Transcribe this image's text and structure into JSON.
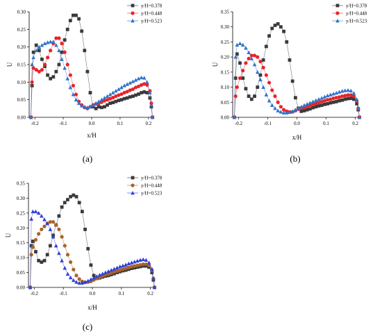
{
  "chart_data": [
    {
      "type": "line",
      "panel_label": "(a)",
      "xlabel": "x/H",
      "ylabel": "U",
      "xlim": [
        -0.22,
        0.22
      ],
      "ylim": [
        0,
        0.3
      ],
      "xticks": [
        "-0.2",
        "-0.1",
        "0.0",
        "0.1",
        "0.2"
      ],
      "yticks": [
        "0.00",
        "0.05",
        "0.10",
        "0.15",
        "0.20",
        "0.25",
        "0.30"
      ],
      "legend_position": "top-right",
      "series": [
        {
          "name": "y/H=0.378",
          "color": "#3a3a3a",
          "marker": "square",
          "x": [
            -0.214,
            -0.21,
            -0.205,
            -0.195,
            -0.185,
            -0.175,
            -0.165,
            -0.155,
            -0.145,
            -0.135,
            -0.125,
            -0.115,
            -0.105,
            -0.095,
            -0.085,
            -0.075,
            -0.065,
            -0.055,
            -0.045,
            -0.035,
            -0.025,
            -0.015,
            -0.005,
            0.005,
            0.015,
            0.025,
            0.035,
            0.045,
            0.055,
            0.065,
            0.075,
            0.085,
            0.095,
            0.105,
            0.115,
            0.125,
            0.135,
            0.145,
            0.155,
            0.165,
            0.175,
            0.185,
            0.195,
            0.205,
            0.21,
            0.214
          ],
          "y": [
            0.0,
            0.09,
            0.185,
            0.205,
            0.19,
            0.165,
            0.145,
            0.12,
            0.11,
            0.115,
            0.13,
            0.15,
            0.185,
            0.22,
            0.25,
            0.275,
            0.29,
            0.29,
            0.28,
            0.245,
            0.19,
            0.13,
            0.07,
            0.03,
            0.025,
            0.03,
            0.028,
            0.03,
            0.035,
            0.04,
            0.042,
            0.045,
            0.048,
            0.05,
            0.053,
            0.055,
            0.058,
            0.06,
            0.063,
            0.066,
            0.07,
            0.072,
            0.07,
            0.055,
            0.03,
            0.0
          ]
        },
        {
          "name": "y/H=0.448",
          "color": "#e8242a",
          "marker": "circle",
          "x": [
            -0.214,
            -0.21,
            -0.205,
            -0.195,
            -0.185,
            -0.175,
            -0.165,
            -0.155,
            -0.145,
            -0.135,
            -0.125,
            -0.115,
            -0.105,
            -0.095,
            -0.085,
            -0.075,
            -0.065,
            -0.055,
            -0.045,
            -0.035,
            -0.025,
            -0.015,
            -0.005,
            0.005,
            0.015,
            0.025,
            0.035,
            0.045,
            0.055,
            0.065,
            0.075,
            0.085,
            0.095,
            0.105,
            0.115,
            0.125,
            0.135,
            0.145,
            0.155,
            0.165,
            0.175,
            0.185,
            0.195,
            0.205,
            0.21,
            0.214
          ],
          "y": [
            0.0,
            0.1,
            0.14,
            0.135,
            0.13,
            0.135,
            0.15,
            0.17,
            0.19,
            0.21,
            0.225,
            0.225,
            0.21,
            0.185,
            0.15,
            0.12,
            0.09,
            0.065,
            0.045,
            0.035,
            0.028,
            0.025,
            0.03,
            0.035,
            0.038,
            0.04,
            0.043,
            0.047,
            0.05,
            0.053,
            0.056,
            0.06,
            0.063,
            0.066,
            0.07,
            0.073,
            0.077,
            0.08,
            0.085,
            0.088,
            0.092,
            0.095,
            0.092,
            0.075,
            0.04,
            0.0
          ]
        },
        {
          "name": "y/H=0.523",
          "color": "#2f73c8",
          "marker": "triangle",
          "x": [
            -0.214,
            -0.21,
            -0.205,
            -0.195,
            -0.185,
            -0.175,
            -0.165,
            -0.155,
            -0.145,
            -0.135,
            -0.125,
            -0.115,
            -0.105,
            -0.095,
            -0.085,
            -0.075,
            -0.065,
            -0.055,
            -0.045,
            -0.035,
            -0.025,
            -0.015,
            -0.005,
            0.005,
            0.015,
            0.025,
            0.035,
            0.045,
            0.055,
            0.065,
            0.075,
            0.085,
            0.095,
            0.105,
            0.115,
            0.125,
            0.135,
            0.145,
            0.155,
            0.165,
            0.175,
            0.185,
            0.195,
            0.205,
            0.21,
            0.214
          ],
          "y": [
            0.0,
            0.15,
            0.17,
            0.19,
            0.2,
            0.205,
            0.21,
            0.213,
            0.215,
            0.215,
            0.205,
            0.19,
            0.165,
            0.14,
            0.11,
            0.085,
            0.065,
            0.05,
            0.04,
            0.033,
            0.03,
            0.028,
            0.03,
            0.035,
            0.04,
            0.045,
            0.05,
            0.055,
            0.06,
            0.065,
            0.07,
            0.075,
            0.08,
            0.085,
            0.09,
            0.094,
            0.098,
            0.102,
            0.106,
            0.11,
            0.113,
            0.112,
            0.1,
            0.07,
            0.035,
            0.0
          ]
        }
      ]
    },
    {
      "type": "line",
      "panel_label": "(b)",
      "xlabel": "x/H",
      "ylabel": "U",
      "xlim": [
        -0.22,
        0.22
      ],
      "ylim": [
        0,
        0.35
      ],
      "xticks": [
        "-0.2",
        "-0.1",
        "0.0",
        "0.1",
        "0.2"
      ],
      "yticks": [
        "0.00",
        "0.05",
        "0.10",
        "0.15",
        "0.20",
        "0.25",
        "0.30",
        "0.35"
      ],
      "legend_position": "top-right",
      "series": [
        {
          "name": "y/H=0.378",
          "color": "#3a3a3a",
          "marker": "square",
          "x": [
            -0.214,
            -0.21,
            -0.205,
            -0.195,
            -0.185,
            -0.175,
            -0.165,
            -0.155,
            -0.145,
            -0.135,
            -0.125,
            -0.115,
            -0.105,
            -0.095,
            -0.085,
            -0.075,
            -0.065,
            -0.055,
            -0.045,
            -0.035,
            -0.025,
            -0.015,
            -0.005,
            0.005,
            0.015,
            0.025,
            0.035,
            0.045,
            0.055,
            0.065,
            0.075,
            0.085,
            0.095,
            0.105,
            0.115,
            0.125,
            0.135,
            0.145,
            0.155,
            0.165,
            0.175,
            0.185,
            0.195,
            0.205,
            0.21,
            0.214
          ],
          "y": [
            0.0,
            0.13,
            0.21,
            0.18,
            0.13,
            0.095,
            0.07,
            0.06,
            0.07,
            0.1,
            0.14,
            0.19,
            0.235,
            0.27,
            0.295,
            0.305,
            0.31,
            0.3,
            0.285,
            0.25,
            0.19,
            0.12,
            0.065,
            0.03,
            0.02,
            0.022,
            0.025,
            0.028,
            0.032,
            0.035,
            0.038,
            0.04,
            0.043,
            0.045,
            0.048,
            0.05,
            0.052,
            0.055,
            0.057,
            0.06,
            0.062,
            0.063,
            0.06,
            0.045,
            0.025,
            0.0
          ]
        },
        {
          "name": "y/H=0.448",
          "color": "#e8242a",
          "marker": "circle",
          "x": [
            -0.214,
            -0.21,
            -0.205,
            -0.195,
            -0.185,
            -0.175,
            -0.165,
            -0.155,
            -0.145,
            -0.135,
            -0.125,
            -0.115,
            -0.105,
            -0.095,
            -0.085,
            -0.075,
            -0.065,
            -0.055,
            -0.045,
            -0.035,
            -0.025,
            -0.015,
            -0.005,
            0.005,
            0.015,
            0.025,
            0.035,
            0.045,
            0.055,
            0.065,
            0.075,
            0.085,
            0.095,
            0.105,
            0.115,
            0.125,
            0.135,
            0.145,
            0.155,
            0.165,
            0.175,
            0.185,
            0.195,
            0.205,
            0.21,
            0.214
          ],
          "y": [
            0.0,
            0.07,
            0.1,
            0.13,
            0.155,
            0.18,
            0.195,
            0.205,
            0.205,
            0.2,
            0.185,
            0.165,
            0.14,
            0.115,
            0.09,
            0.07,
            0.05,
            0.035,
            0.025,
            0.02,
            0.018,
            0.018,
            0.022,
            0.027,
            0.03,
            0.033,
            0.036,
            0.04,
            0.043,
            0.046,
            0.049,
            0.052,
            0.055,
            0.058,
            0.06,
            0.063,
            0.065,
            0.067,
            0.07,
            0.072,
            0.074,
            0.074,
            0.07,
            0.055,
            0.03,
            0.0
          ]
        },
        {
          "name": "y/H=0.523",
          "color": "#2f73c8",
          "marker": "triangle",
          "x": [
            -0.214,
            -0.21,
            -0.205,
            -0.195,
            -0.185,
            -0.175,
            -0.165,
            -0.155,
            -0.145,
            -0.135,
            -0.125,
            -0.115,
            -0.105,
            -0.095,
            -0.085,
            -0.075,
            -0.065,
            -0.055,
            -0.045,
            -0.035,
            -0.025,
            -0.015,
            -0.005,
            0.005,
            0.015,
            0.025,
            0.035,
            0.045,
            0.055,
            0.065,
            0.075,
            0.085,
            0.095,
            0.105,
            0.115,
            0.125,
            0.135,
            0.145,
            0.155,
            0.165,
            0.175,
            0.185,
            0.195,
            0.205,
            0.21,
            0.214
          ],
          "y": [
            0.0,
            0.2,
            0.24,
            0.245,
            0.24,
            0.23,
            0.215,
            0.195,
            0.175,
            0.15,
            0.125,
            0.1,
            0.075,
            0.055,
            0.04,
            0.03,
            0.022,
            0.018,
            0.015,
            0.015,
            0.017,
            0.02,
            0.025,
            0.03,
            0.035,
            0.04,
            0.044,
            0.048,
            0.052,
            0.056,
            0.06,
            0.064,
            0.068,
            0.072,
            0.075,
            0.078,
            0.081,
            0.084,
            0.087,
            0.089,
            0.09,
            0.088,
            0.08,
            0.06,
            0.03,
            0.0
          ]
        }
      ]
    },
    {
      "type": "line",
      "panel_label": "(c)",
      "xlabel": "x/H",
      "ylabel": "U",
      "xlim": [
        -0.22,
        0.22
      ],
      "ylim": [
        0,
        0.35
      ],
      "xticks": [
        "-0.2",
        "-0.1",
        "0.0",
        "0.1",
        "0.2"
      ],
      "yticks": [
        "0.00",
        "0.05",
        "0.10",
        "0.15",
        "0.20",
        "0.25",
        "0.30",
        "0.35"
      ],
      "legend_position": "top-right",
      "series": [
        {
          "name": "y/H=0.378",
          "color": "#3a3a3a",
          "marker": "square",
          "x": [
            -0.214,
            -0.21,
            -0.205,
            -0.195,
            -0.185,
            -0.175,
            -0.165,
            -0.155,
            -0.145,
            -0.135,
            -0.125,
            -0.115,
            -0.105,
            -0.095,
            -0.085,
            -0.075,
            -0.065,
            -0.055,
            -0.045,
            -0.035,
            -0.025,
            -0.015,
            -0.005,
            0.005,
            0.015,
            0.025,
            0.035,
            0.045,
            0.055,
            0.065,
            0.075,
            0.085,
            0.095,
            0.105,
            0.115,
            0.125,
            0.135,
            0.145,
            0.155,
            0.165,
            0.175,
            0.185,
            0.195,
            0.205,
            0.21,
            0.214
          ],
          "y": [
            0.0,
            0.14,
            0.155,
            0.12,
            0.09,
            0.085,
            0.09,
            0.11,
            0.14,
            0.175,
            0.21,
            0.24,
            0.27,
            0.285,
            0.295,
            0.305,
            0.31,
            0.305,
            0.285,
            0.255,
            0.195,
            0.13,
            0.075,
            0.04,
            0.03,
            0.032,
            0.035,
            0.038,
            0.04,
            0.043,
            0.046,
            0.05,
            0.053,
            0.056,
            0.058,
            0.061,
            0.064,
            0.066,
            0.068,
            0.07,
            0.072,
            0.072,
            0.068,
            0.05,
            0.025,
            0.0
          ]
        },
        {
          "name": "y/H=0.448",
          "color": "#a8642a",
          "marker": "circle",
          "x": [
            -0.214,
            -0.21,
            -0.205,
            -0.195,
            -0.185,
            -0.175,
            -0.165,
            -0.155,
            -0.145,
            -0.135,
            -0.125,
            -0.115,
            -0.105,
            -0.095,
            -0.085,
            -0.075,
            -0.065,
            -0.055,
            -0.045,
            -0.035,
            -0.025,
            -0.015,
            -0.005,
            0.005,
            0.015,
            0.025,
            0.035,
            0.045,
            0.055,
            0.065,
            0.075,
            0.085,
            0.095,
            0.105,
            0.115,
            0.125,
            0.135,
            0.145,
            0.155,
            0.165,
            0.175,
            0.185,
            0.195,
            0.205,
            0.21,
            0.214
          ],
          "y": [
            0.0,
            0.11,
            0.135,
            0.16,
            0.18,
            0.195,
            0.205,
            0.215,
            0.22,
            0.22,
            0.21,
            0.195,
            0.17,
            0.14,
            0.11,
            0.085,
            0.06,
            0.04,
            0.028,
            0.02,
            0.017,
            0.018,
            0.02,
            0.025,
            0.03,
            0.034,
            0.038,
            0.042,
            0.045,
            0.048,
            0.052,
            0.055,
            0.058,
            0.061,
            0.064,
            0.067,
            0.07,
            0.072,
            0.074,
            0.076,
            0.078,
            0.078,
            0.074,
            0.058,
            0.03,
            0.0
          ]
        },
        {
          "name": "y/H=0.523",
          "color": "#2f3fd8",
          "marker": "triangle",
          "x": [
            -0.214,
            -0.21,
            -0.205,
            -0.195,
            -0.185,
            -0.175,
            -0.165,
            -0.155,
            -0.145,
            -0.135,
            -0.125,
            -0.115,
            -0.105,
            -0.095,
            -0.085,
            -0.075,
            -0.065,
            -0.055,
            -0.045,
            -0.035,
            -0.025,
            -0.015,
            -0.005,
            0.005,
            0.015,
            0.025,
            0.035,
            0.045,
            0.055,
            0.065,
            0.075,
            0.085,
            0.095,
            0.105,
            0.115,
            0.125,
            0.135,
            0.145,
            0.155,
            0.165,
            0.175,
            0.185,
            0.195,
            0.205,
            0.21,
            0.214
          ],
          "y": [
            0.0,
            0.23,
            0.255,
            0.255,
            0.25,
            0.24,
            0.228,
            0.215,
            0.195,
            0.17,
            0.14,
            0.115,
            0.09,
            0.065,
            0.045,
            0.033,
            0.024,
            0.018,
            0.015,
            0.015,
            0.018,
            0.022,
            0.027,
            0.032,
            0.037,
            0.042,
            0.046,
            0.05,
            0.054,
            0.058,
            0.062,
            0.066,
            0.07,
            0.073,
            0.076,
            0.08,
            0.083,
            0.086,
            0.089,
            0.092,
            0.094,
            0.092,
            0.083,
            0.062,
            0.03,
            0.0
          ]
        }
      ]
    }
  ]
}
